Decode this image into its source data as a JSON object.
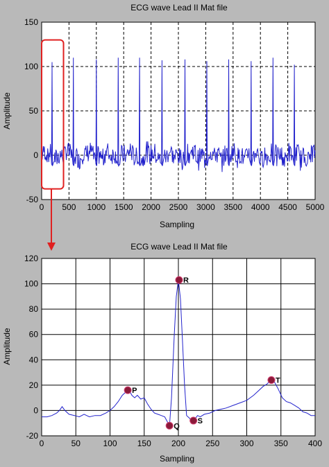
{
  "chart_data": [
    {
      "type": "line",
      "title": "ECG wave Lead II Mat file",
      "xlabel": "Sampling",
      "ylabel": "Amplitude",
      "xlim": [
        0,
        5000
      ],
      "ylim": [
        -50,
        150
      ],
      "xticks": [
        0,
        500,
        1000,
        1500,
        2000,
        2500,
        3000,
        3500,
        4000,
        4500,
        5000
      ],
      "yticks": [
        -50,
        0,
        50,
        100,
        150
      ],
      "grid": "dashed",
      "line_color": "#2222cc",
      "r_peaks": [
        {
          "x": 190,
          "y": 105
        },
        {
          "x": 580,
          "y": 110
        },
        {
          "x": 1000,
          "y": 108
        },
        {
          "x": 1400,
          "y": 110
        },
        {
          "x": 1790,
          "y": 110
        },
        {
          "x": 2200,
          "y": 107
        },
        {
          "x": 2620,
          "y": 108
        },
        {
          "x": 3020,
          "y": 106
        },
        {
          "x": 3420,
          "y": 108
        },
        {
          "x": 3830,
          "y": 106
        },
        {
          "x": 4230,
          "y": 110
        },
        {
          "x": 4620,
          "y": 102
        }
      ],
      "highlight_box": {
        "x": [
          0,
          400
        ],
        "y": [
          -38,
          130
        ],
        "color": "#e02020"
      }
    },
    {
      "type": "line",
      "title": "ECG wave Lead II Mat file",
      "xlabel": "Sampling",
      "ylabel": "Amplitude",
      "xlim": [
        0,
        400
      ],
      "ylim": [
        -20,
        120
      ],
      "xticks": [
        0,
        50,
        100,
        150,
        200,
        250,
        300,
        350,
        400
      ],
      "yticks": [
        -20,
        0,
        20,
        40,
        60,
        80,
        100,
        120
      ],
      "grid": "solid",
      "line_color": "#2222cc",
      "series_points": [
        [
          0,
          -5
        ],
        [
          8,
          -5
        ],
        [
          15,
          -4
        ],
        [
          22,
          -2
        ],
        [
          26,
          0
        ],
        [
          30,
          3
        ],
        [
          34,
          0
        ],
        [
          40,
          -3
        ],
        [
          48,
          -4
        ],
        [
          55,
          -5
        ],
        [
          62,
          -3
        ],
        [
          70,
          -5
        ],
        [
          78,
          -4
        ],
        [
          86,
          -4
        ],
        [
          94,
          -2
        ],
        [
          100,
          0
        ],
        [
          106,
          3
        ],
        [
          112,
          7
        ],
        [
          118,
          12
        ],
        [
          124,
          15
        ],
        [
          128,
          16
        ],
        [
          132,
          12
        ],
        [
          136,
          10
        ],
        [
          140,
          12
        ],
        [
          145,
          9
        ],
        [
          150,
          10
        ],
        [
          155,
          5
        ],
        [
          160,
          1
        ],
        [
          165,
          -2
        ],
        [
          170,
          -3
        ],
        [
          175,
          -4
        ],
        [
          180,
          -5
        ],
        [
          184,
          -9
        ],
        [
          187,
          -12
        ],
        [
          190,
          10
        ],
        [
          194,
          60
        ],
        [
          197,
          90
        ],
        [
          200,
          103
        ],
        [
          203,
          88
        ],
        [
          206,
          55
        ],
        [
          209,
          20
        ],
        [
          212,
          -4
        ],
        [
          216,
          -6
        ],
        [
          220,
          -8
        ],
        [
          224,
          -7
        ],
        [
          228,
          -4
        ],
        [
          232,
          -5
        ],
        [
          238,
          -3
        ],
        [
          246,
          -2
        ],
        [
          254,
          0
        ],
        [
          262,
          1
        ],
        [
          270,
          2
        ],
        [
          280,
          4
        ],
        [
          290,
          6
        ],
        [
          300,
          8
        ],
        [
          310,
          12
        ],
        [
          318,
          16
        ],
        [
          324,
          19
        ],
        [
          330,
          21
        ],
        [
          335,
          24
        ],
        [
          340,
          23
        ],
        [
          346,
          17
        ],
        [
          352,
          10
        ],
        [
          358,
          7
        ],
        [
          364,
          6
        ],
        [
          370,
          4
        ],
        [
          376,
          2
        ],
        [
          382,
          -1
        ],
        [
          388,
          -2
        ],
        [
          394,
          -4
        ],
        [
          400,
          -4
        ]
      ],
      "markers": [
        {
          "label": "P",
          "x": 126,
          "y": 16
        },
        {
          "label": "Q",
          "x": 187,
          "y": -12
        },
        {
          "label": "R",
          "x": 201,
          "y": 103
        },
        {
          "label": "S",
          "x": 222,
          "y": -8
        },
        {
          "label": "T",
          "x": 336,
          "y": 24
        }
      ],
      "marker_color": "#8b1a3a"
    }
  ],
  "callout": {
    "color": "#e02020"
  }
}
